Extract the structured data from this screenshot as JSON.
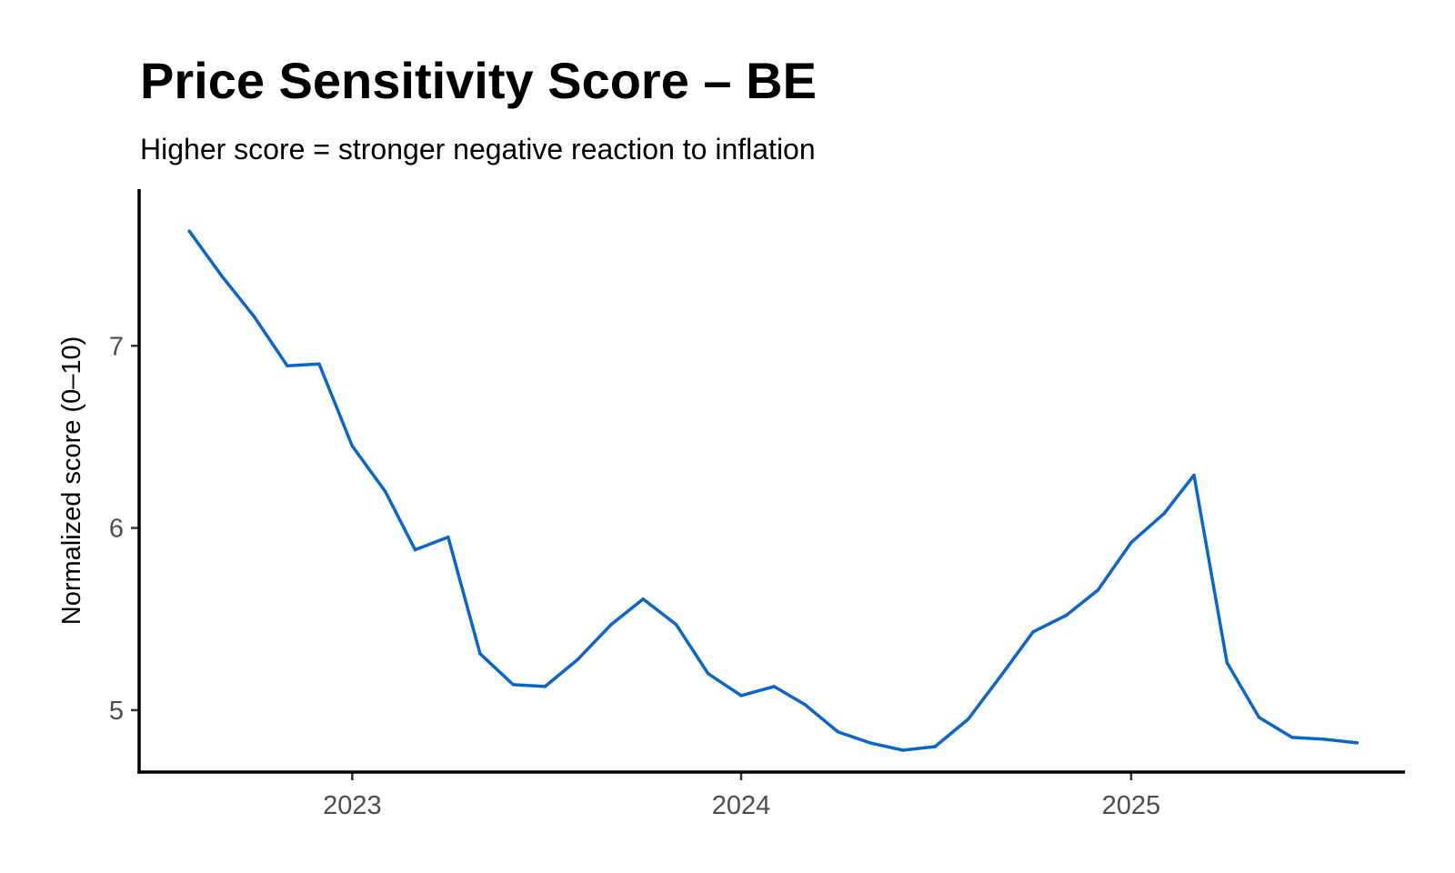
{
  "chart_data": {
    "type": "line",
    "title": "Price Sensitivity Score – BE",
    "subtitle": "Higher score = stronger negative reaction to inflation",
    "xlabel": "",
    "ylabel": "Normalized score (0–10)",
    "x_ticks": [
      "2023",
      "2024",
      "2025"
    ],
    "y_ticks": [
      "5",
      "6",
      "7"
    ],
    "xlim": [
      "2022-06-15",
      "2025-09-15"
    ],
    "ylim": [
      4.66,
      7.86
    ],
    "grid": false,
    "legend": "none",
    "line_color": "#0a66cc",
    "series": [
      {
        "x": [
          "2022-08-01",
          "2022-09-01",
          "2022-10-01",
          "2022-11-01",
          "2022-12-01",
          "2023-01-01",
          "2023-02-01",
          "2023-03-01",
          "2023-04-01",
          "2023-05-01",
          "2023-06-01",
          "2023-07-01",
          "2023-08-01",
          "2023-09-01",
          "2023-10-01",
          "2023-11-01",
          "2023-12-01",
          "2024-01-01",
          "2024-02-01",
          "2024-03-01",
          "2024-04-01",
          "2024-05-01",
          "2024-06-01",
          "2024-07-01",
          "2024-08-01",
          "2024-09-01",
          "2024-10-01",
          "2024-11-01",
          "2024-12-01",
          "2025-01-01",
          "2025-02-01",
          "2025-03-01",
          "2025-04-01",
          "2025-05-01",
          "2025-06-01",
          "2025-07-01",
          "2025-08-01"
        ],
        "values": [
          7.63,
          7.38,
          7.16,
          6.89,
          6.9,
          6.45,
          6.2,
          5.88,
          5.95,
          5.31,
          5.14,
          5.13,
          5.28,
          5.47,
          5.61,
          5.47,
          5.2,
          5.08,
          5.13,
          5.03,
          4.88,
          4.82,
          4.78,
          4.8,
          4.95,
          5.19,
          5.43,
          5.52,
          5.66,
          5.92,
          6.08,
          6.29,
          5.26,
          4.96,
          4.85,
          4.84,
          4.82
        ]
      }
    ]
  }
}
